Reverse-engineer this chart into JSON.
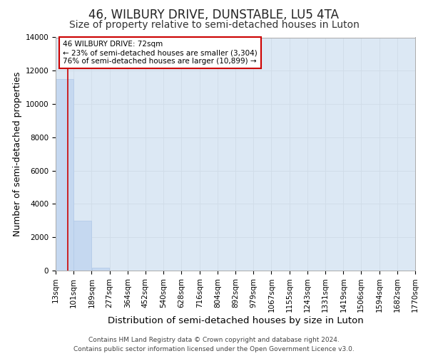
{
  "title": "46, WILBURY DRIVE, DUNSTABLE, LU5 4TA",
  "subtitle": "Size of property relative to semi-detached houses in Luton",
  "xlabel": "Distribution of semi-detached houses by size in Luton",
  "ylabel": "Number of semi-detached properties",
  "property_size": 72,
  "annotation_line1": "46 WILBURY DRIVE: 72sqm",
  "annotation_line2": "← 23% of semi-detached houses are smaller (3,304)",
  "annotation_line3": "76% of semi-detached houses are larger (10,899) →",
  "footer1": "Contains HM Land Registry data © Crown copyright and database right 2024.",
  "footer2": "Contains public sector information licensed under the Open Government Licence v3.0.",
  "bin_edges": [
    13,
    101,
    189,
    277,
    364,
    452,
    540,
    628,
    716,
    804,
    892,
    979,
    1067,
    1155,
    1243,
    1331,
    1419,
    1506,
    1594,
    1682,
    1770
  ],
  "bin_labels": [
    "13sqm",
    "101sqm",
    "189sqm",
    "277sqm",
    "364sqm",
    "452sqm",
    "540sqm",
    "628sqm",
    "716sqm",
    "804sqm",
    "892sqm",
    "979sqm",
    "1067sqm",
    "1155sqm",
    "1243sqm",
    "1331sqm",
    "1419sqm",
    "1506sqm",
    "1594sqm",
    "1682sqm",
    "1770sqm"
  ],
  "bar_heights": [
    11500,
    3000,
    150,
    0,
    0,
    0,
    0,
    0,
    0,
    0,
    0,
    0,
    0,
    0,
    0,
    0,
    0,
    0,
    0,
    0
  ],
  "bar_color": "#c5d8f0",
  "bar_edge_color": "#b0c8e8",
  "grid_color": "#d0dce8",
  "background_color": "#dce8f4",
  "red_line_color": "#cc0000",
  "annotation_box_color": "#cc0000",
  "ylim": [
    0,
    14000
  ],
  "yticks": [
    0,
    2000,
    4000,
    6000,
    8000,
    10000,
    12000,
    14000
  ],
  "title_fontsize": 12,
  "subtitle_fontsize": 10,
  "axis_label_fontsize": 9,
  "tick_fontsize": 7.5,
  "annotation_fontsize": 7.5,
  "footer_fontsize": 6.5
}
